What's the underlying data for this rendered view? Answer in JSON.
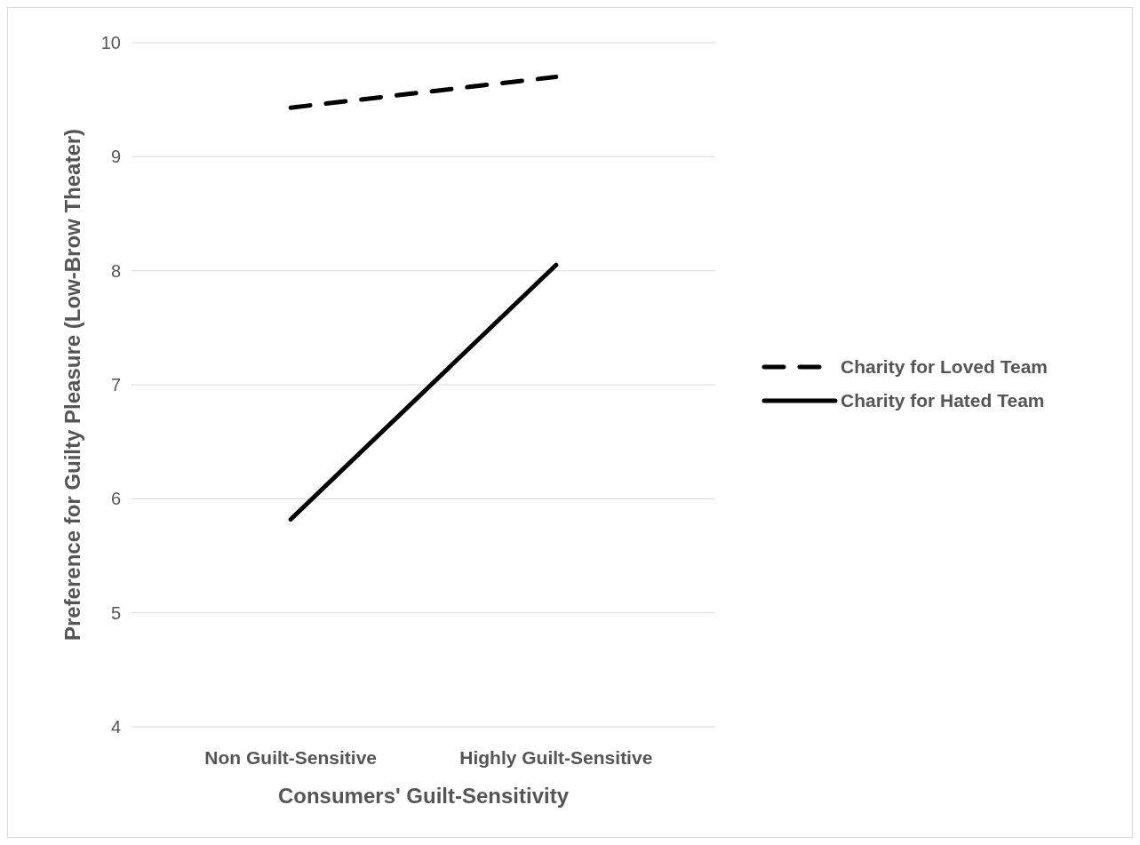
{
  "chart_data": {
    "type": "line",
    "xlabel": "Consumers' Guilt-Sensitivity",
    "ylabel": "Preference for Guilty Pleasure (Low-Brow Theater)",
    "categories": [
      "Non Guilt-Sensitive",
      "Highly Guilt-Sensitive"
    ],
    "series": [
      {
        "name": "Charity for Loved Team",
        "color": "#000000",
        "values": [
          9.43,
          9.7
        ],
        "line_style": "dashed"
      },
      {
        "name": "Charity for Hated Team",
        "color": "#000000",
        "values": [
          5.82,
          8.05
        ],
        "line_style": "solid"
      }
    ],
    "ylim": [
      4,
      10
    ],
    "yticks": [
      4,
      5,
      6,
      7,
      8,
      9,
      10
    ],
    "grid": "y",
    "legend": "right",
    "marker": "none"
  }
}
